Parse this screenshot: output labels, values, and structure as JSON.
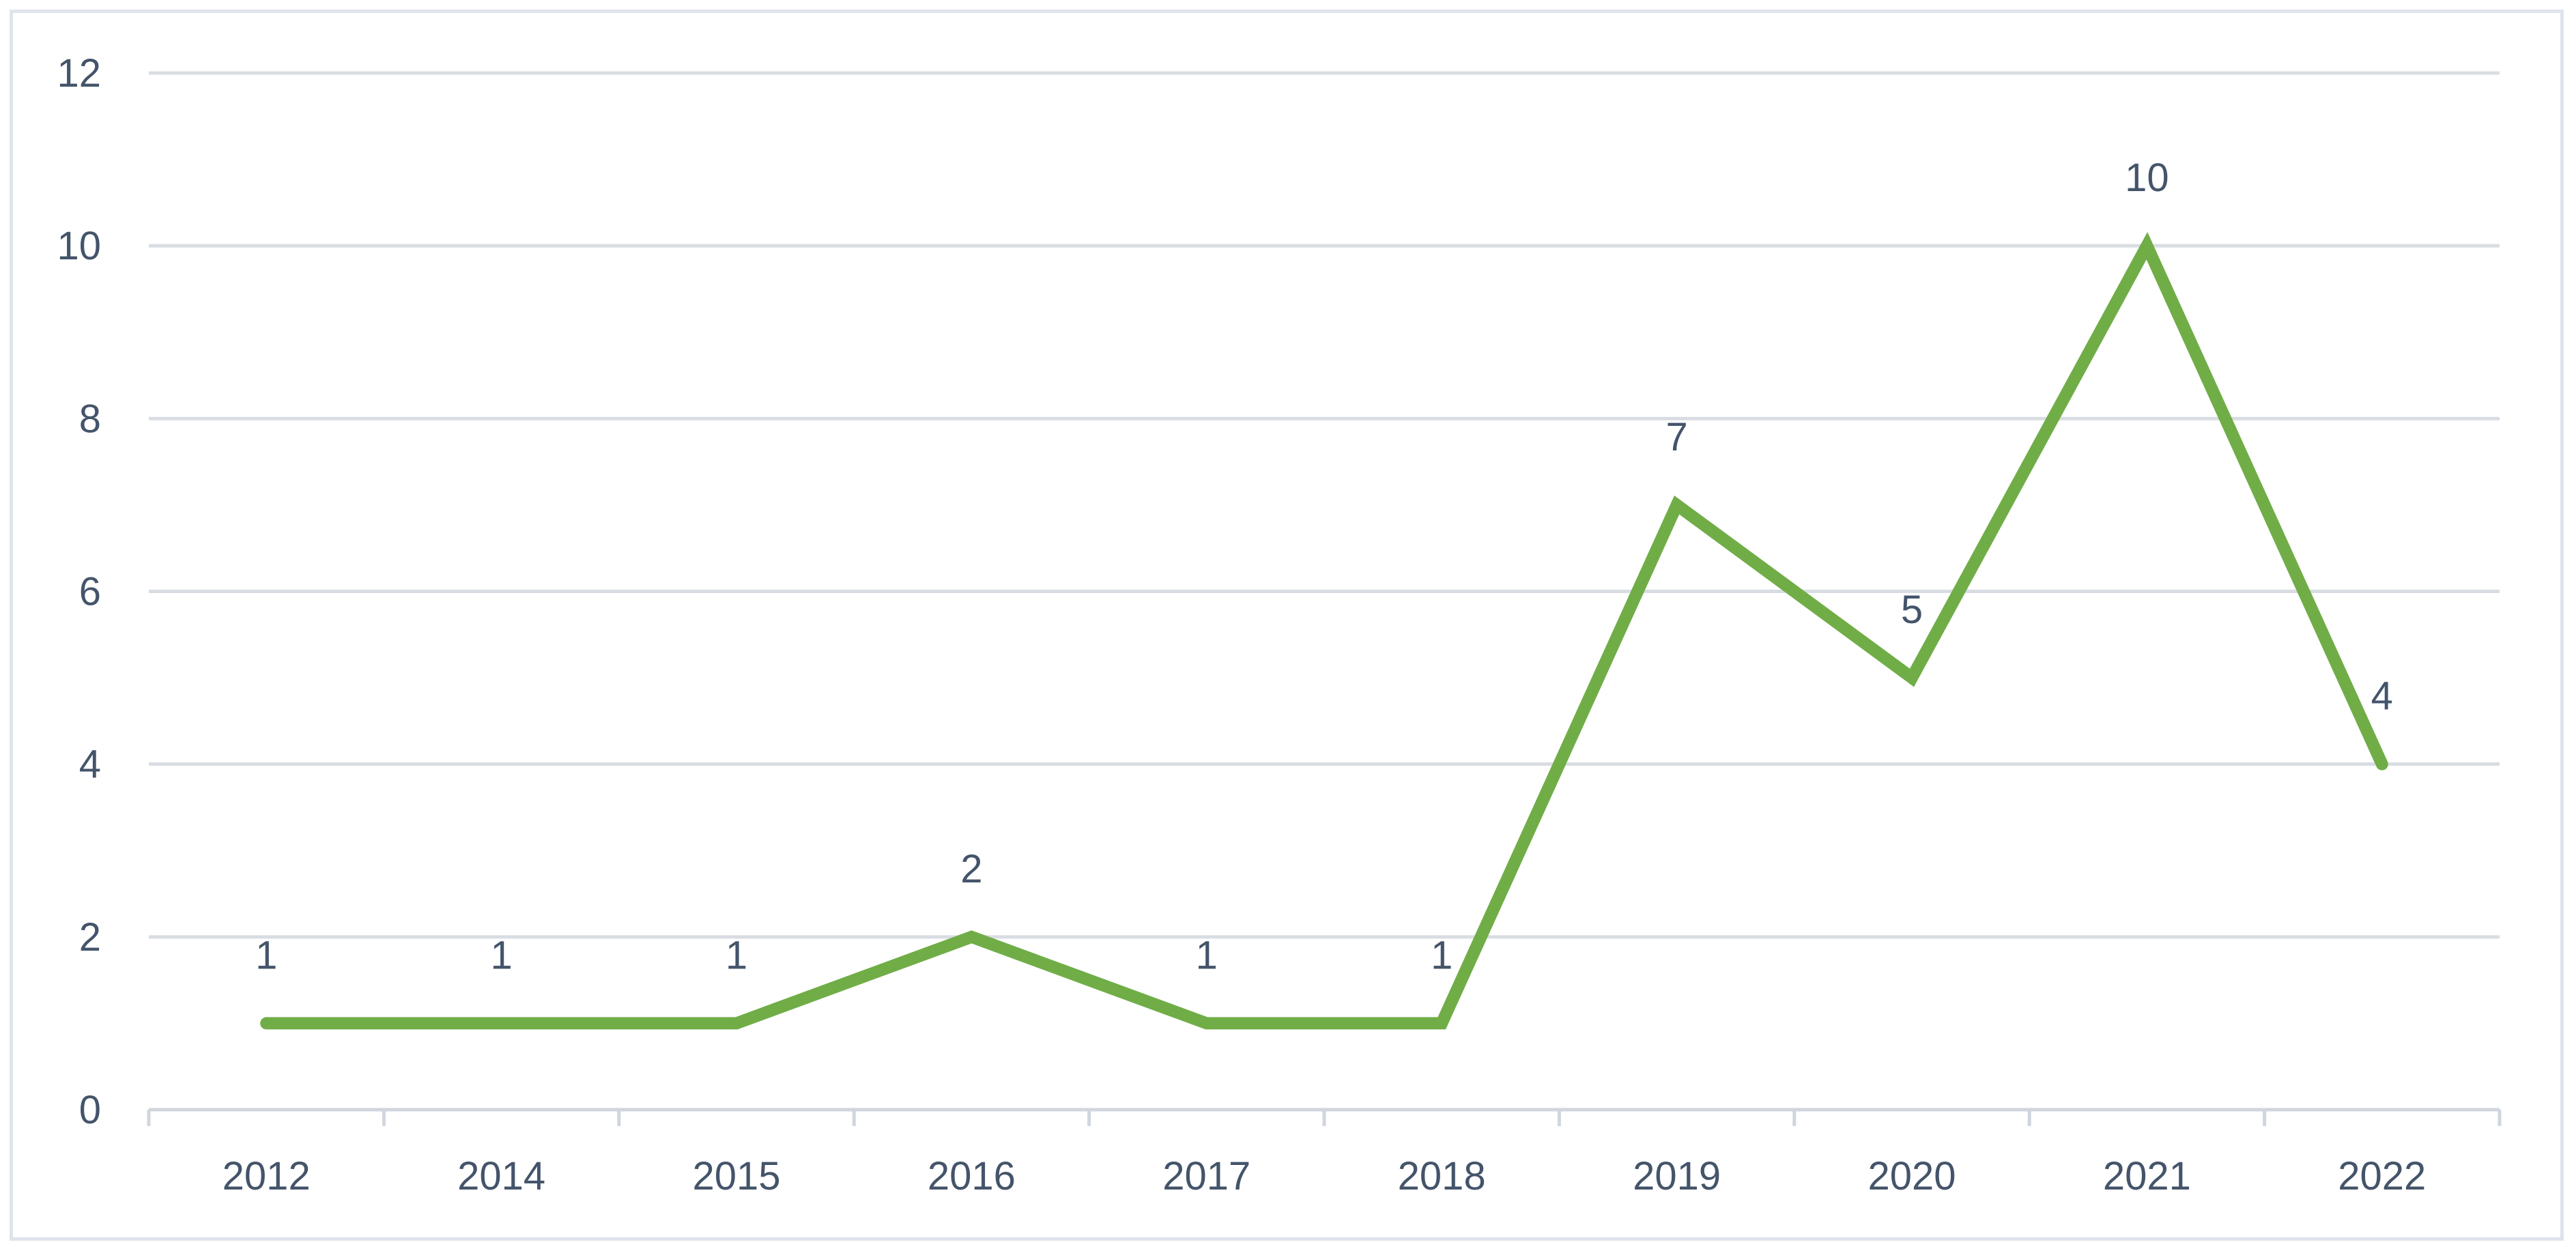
{
  "chart_data": {
    "type": "line",
    "categories": [
      "2012",
      "2014",
      "2015",
      "2016",
      "2017",
      "2018",
      "2019",
      "2020",
      "2021",
      "2022"
    ],
    "series": [
      {
        "values": [
          1,
          1,
          1,
          2,
          1,
          1,
          7,
          5,
          10,
          4
        ],
        "color": "#70ad47"
      }
    ],
    "ylim": [
      0,
      12
    ],
    "yticks": [
      0,
      2,
      4,
      6,
      8,
      10,
      12
    ],
    "data_labels": true,
    "grid": true,
    "legend": "none",
    "title": "",
    "xlabel": "",
    "ylabel": ""
  },
  "colors": {
    "gridline": "#d9dde3",
    "axis": "#d0d6de",
    "text": "#44546a",
    "border": "#dfe4ec"
  }
}
